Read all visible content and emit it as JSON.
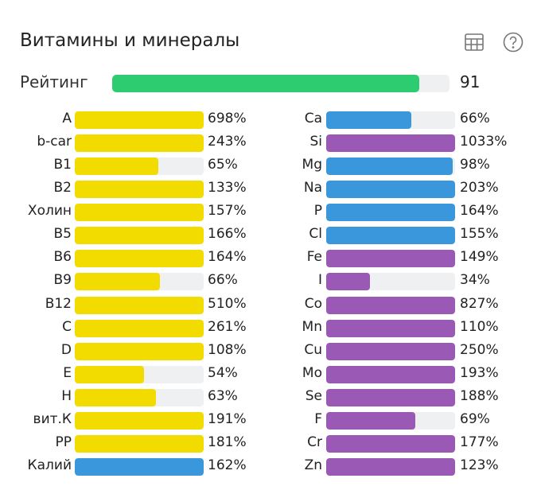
{
  "header": {
    "title": "Витамины и минералы",
    "table_icon": "table-icon",
    "help_icon": "help-circle-icon"
  },
  "rating": {
    "label": "Рейтинг",
    "value": "91",
    "percent": 91,
    "color": "#2ecc71"
  },
  "colors": {
    "vitamin": "#f2dc00",
    "mineral_blue": "#3a97dc",
    "mineral_purple": "#9b59b6",
    "track": "#eef0f2"
  },
  "left": [
    {
      "label": "A",
      "value": "698%",
      "percent": 698,
      "color": "#f2dc00"
    },
    {
      "label": "b-car",
      "value": "243%",
      "percent": 243,
      "color": "#f2dc00"
    },
    {
      "label": "B1",
      "value": "65%",
      "percent": 65,
      "color": "#f2dc00"
    },
    {
      "label": "B2",
      "value": "133%",
      "percent": 133,
      "color": "#f2dc00"
    },
    {
      "label": "Холин",
      "value": "157%",
      "percent": 157,
      "color": "#f2dc00"
    },
    {
      "label": "B5",
      "value": "166%",
      "percent": 166,
      "color": "#f2dc00"
    },
    {
      "label": "B6",
      "value": "164%",
      "percent": 164,
      "color": "#f2dc00"
    },
    {
      "label": "B9",
      "value": "66%",
      "percent": 66,
      "color": "#f2dc00"
    },
    {
      "label": "B12",
      "value": "510%",
      "percent": 510,
      "color": "#f2dc00"
    },
    {
      "label": "C",
      "value": "261%",
      "percent": 261,
      "color": "#f2dc00"
    },
    {
      "label": "D",
      "value": "108%",
      "percent": 108,
      "color": "#f2dc00"
    },
    {
      "label": "E",
      "value": "54%",
      "percent": 54,
      "color": "#f2dc00"
    },
    {
      "label": "H",
      "value": "63%",
      "percent": 63,
      "color": "#f2dc00"
    },
    {
      "label": "вит.К",
      "value": "191%",
      "percent": 191,
      "color": "#f2dc00"
    },
    {
      "label": "PP",
      "value": "181%",
      "percent": 181,
      "color": "#f2dc00"
    },
    {
      "label": "Калий",
      "value": "162%",
      "percent": 162,
      "color": "#3a97dc"
    }
  ],
  "right": [
    {
      "label": "Ca",
      "value": "66%",
      "percent": 66,
      "color": "#3a97dc"
    },
    {
      "label": "Si",
      "value": "1033%",
      "percent": 1033,
      "color": "#9b59b6"
    },
    {
      "label": "Mg",
      "value": "98%",
      "percent": 98,
      "color": "#3a97dc"
    },
    {
      "label": "Na",
      "value": "203%",
      "percent": 203,
      "color": "#3a97dc"
    },
    {
      "label": "P",
      "value": "164%",
      "percent": 164,
      "color": "#3a97dc"
    },
    {
      "label": "Cl",
      "value": "155%",
      "percent": 155,
      "color": "#3a97dc"
    },
    {
      "label": "Fe",
      "value": "149%",
      "percent": 149,
      "color": "#9b59b6"
    },
    {
      "label": "I",
      "value": "34%",
      "percent": 34,
      "color": "#9b59b6"
    },
    {
      "label": "Co",
      "value": "827%",
      "percent": 827,
      "color": "#9b59b6"
    },
    {
      "label": "Mn",
      "value": "110%",
      "percent": 110,
      "color": "#9b59b6"
    },
    {
      "label": "Cu",
      "value": "250%",
      "percent": 250,
      "color": "#9b59b6"
    },
    {
      "label": "Mo",
      "value": "193%",
      "percent": 193,
      "color": "#9b59b6"
    },
    {
      "label": "Se",
      "value": "188%",
      "percent": 188,
      "color": "#9b59b6"
    },
    {
      "label": "F",
      "value": "69%",
      "percent": 69,
      "color": "#9b59b6"
    },
    {
      "label": "Cr",
      "value": "177%",
      "percent": 177,
      "color": "#9b59b6"
    },
    {
      "label": "Zn",
      "value": "123%",
      "percent": 123,
      "color": "#9b59b6"
    }
  ]
}
